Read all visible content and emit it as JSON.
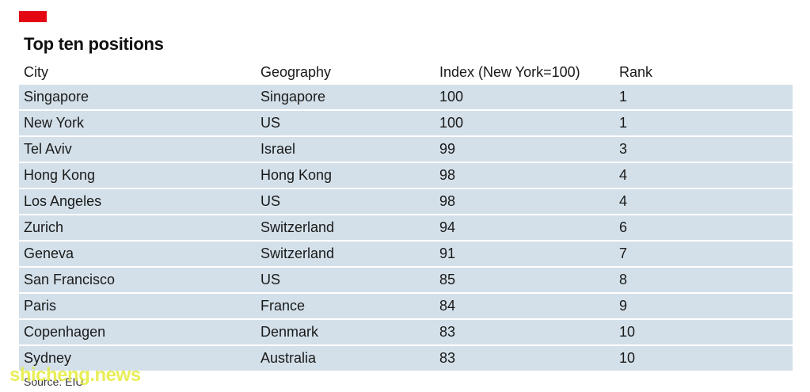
{
  "accent_color": "#e30613",
  "row_color": "#d3e0e9",
  "title": "Top ten positions",
  "headers": {
    "city": "City",
    "geography": "Geography",
    "index": "Index (New York=100)",
    "rank": "Rank"
  },
  "rows": [
    {
      "city": "Singapore",
      "geography": "Singapore",
      "index": "100",
      "rank": "1"
    },
    {
      "city": "New York",
      "geography": "US",
      "index": "100",
      "rank": "1"
    },
    {
      "city": "Tel Aviv",
      "geography": "Israel",
      "index": "99",
      "rank": "3"
    },
    {
      "city": "Hong Kong",
      "geography": "Hong Kong",
      "index": "98",
      "rank": "4"
    },
    {
      "city": "Los Angeles",
      "geography": "US",
      "index": "98",
      "rank": "4"
    },
    {
      "city": "Zurich",
      "geography": "Switzerland",
      "index": "94",
      "rank": "6"
    },
    {
      "city": "Geneva",
      "geography": "Switzerland",
      "index": "91",
      "rank": "7"
    },
    {
      "city": "San Francisco",
      "geography": "US",
      "index": "85",
      "rank": "8"
    },
    {
      "city": "Paris",
      "geography": "France",
      "index": "84",
      "rank": "9"
    },
    {
      "city": "Copenhagen",
      "geography": "Denmark",
      "index": "83",
      "rank": "10"
    },
    {
      "city": "Sydney",
      "geography": "Australia",
      "index": "83",
      "rank": "10"
    }
  ],
  "source": "Source: EIU",
  "watermark": "shicheng.news"
}
